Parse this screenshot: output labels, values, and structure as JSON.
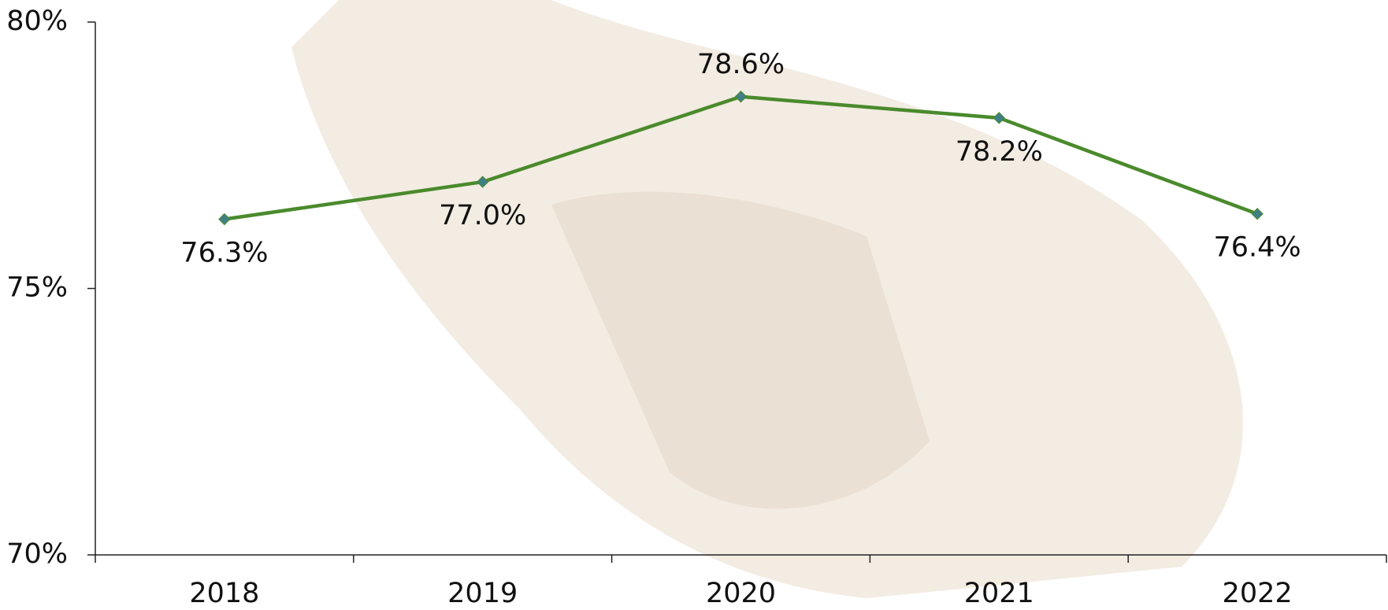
{
  "chart_data": {
    "type": "line",
    "categories": [
      "2018",
      "2019",
      "2020",
      "2021",
      "2022"
    ],
    "series": [
      {
        "color": "#4a8a2c",
        "marker_color": "#3f7f86",
        "values": [
          76.3,
          77.0,
          78.6,
          78.2,
          76.4
        ],
        "value_labels": [
          "76.3%",
          "77.0%",
          "78.6%",
          "78.2%",
          "76.4%"
        ]
      }
    ],
    "ylim": [
      70,
      80
    ],
    "yticks": [
      {
        "value": 70,
        "label": "70%"
      },
      {
        "value": 75,
        "label": "75%"
      },
      {
        "value": 80,
        "label": "80%"
      }
    ]
  }
}
